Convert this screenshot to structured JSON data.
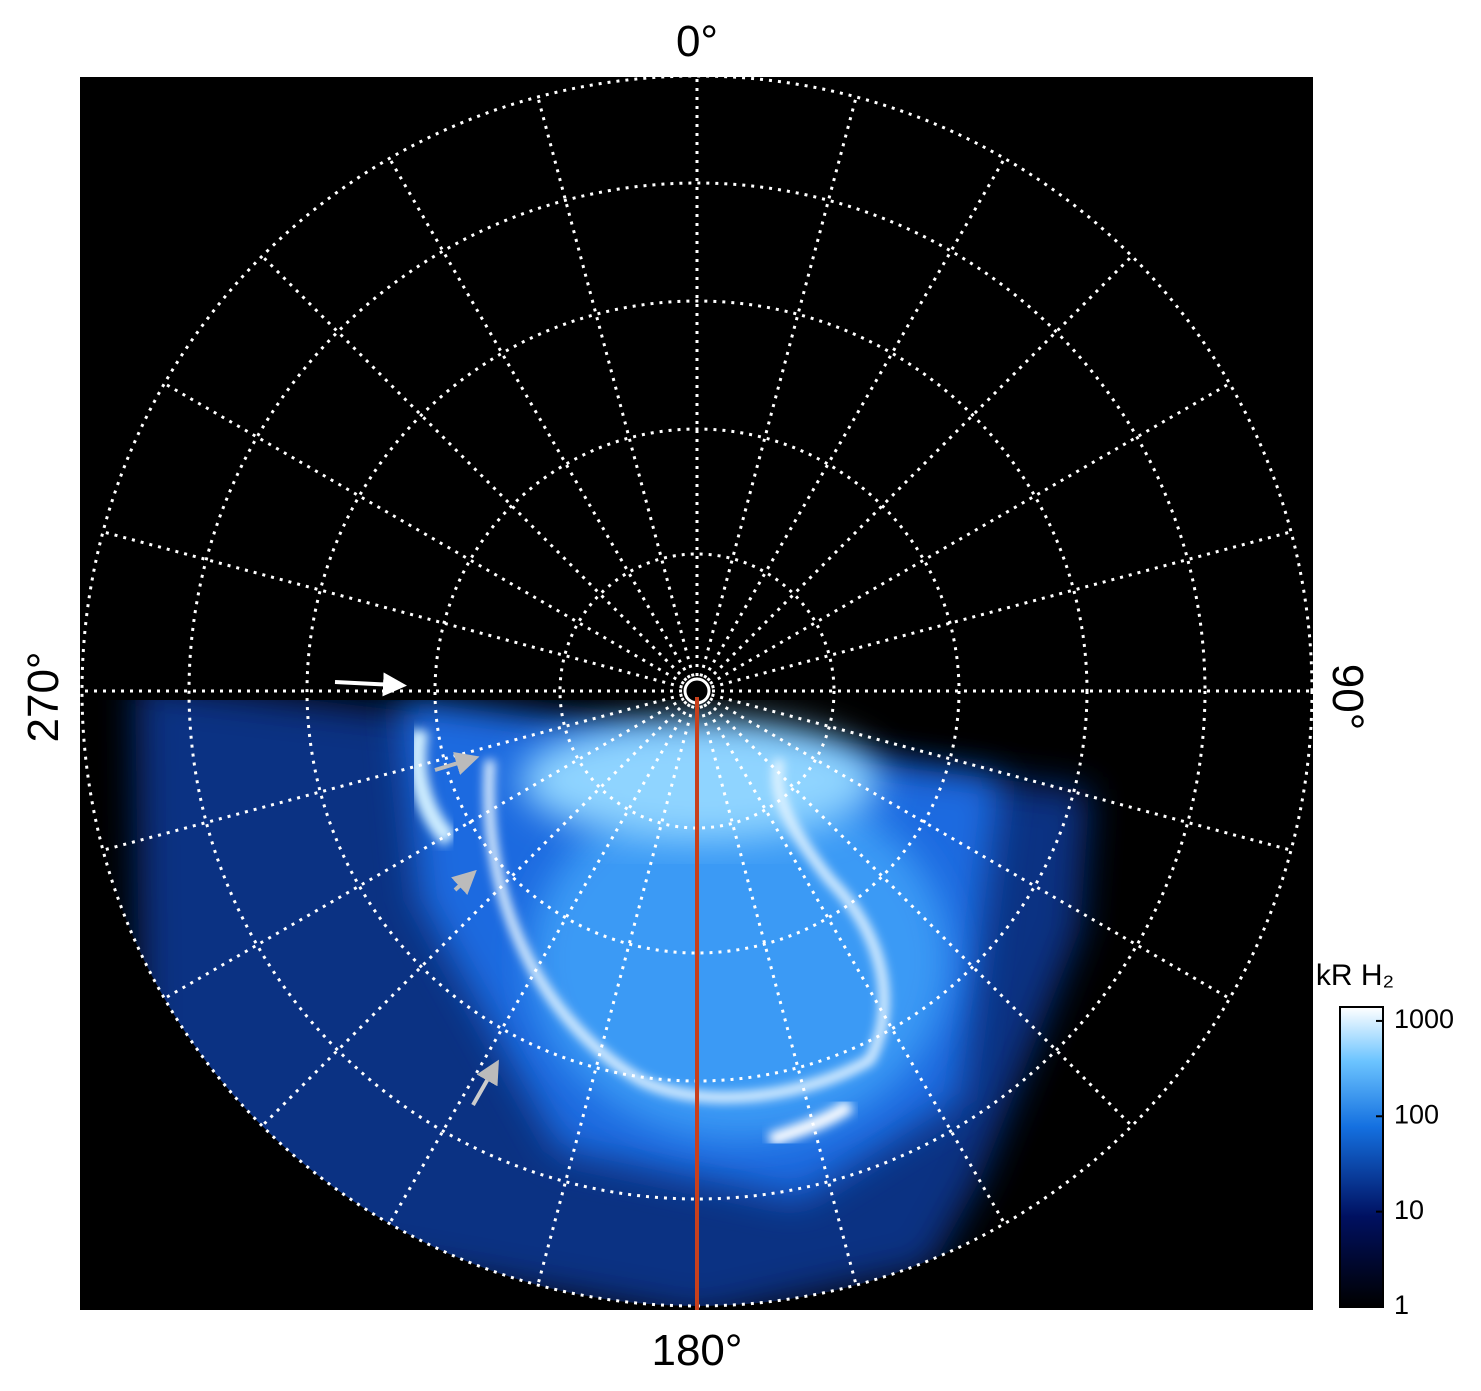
{
  "figure": {
    "angle_labels": {
      "top": "0°",
      "right": "90°",
      "bottom": "180°",
      "left": "270°"
    },
    "colorbar": {
      "title": "kR H₂",
      "log_scale": true,
      "lim": [
        1,
        1400
      ],
      "ticks": [
        1,
        10,
        100,
        1000
      ]
    }
  }
}
